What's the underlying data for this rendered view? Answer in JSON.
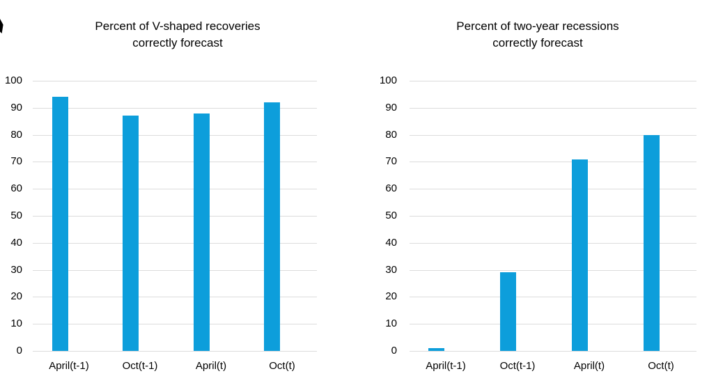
{
  "figure": {
    "background": "#ffffff",
    "text_color": "#000000",
    "gridline_color": "#dcdcdc",
    "bar_color": "#0d9edb",
    "edge_mark_color": "#000000"
  },
  "chart_data": [
    {
      "type": "bar",
      "title": "Percent of V-shaped recoveries correctly forecast",
      "title_lines": [
        "Percent of V-shaped recoveries",
        "correctly forecast"
      ],
      "categories": [
        "April(t-1)",
        "Oct(t-1)",
        "April(t)",
        "Oct(t)"
      ],
      "values": [
        94,
        87,
        88,
        92
      ],
      "xlabel": "",
      "ylabel": "",
      "ylim": [
        0,
        100
      ],
      "yticks": [
        0,
        10,
        20,
        30,
        40,
        50,
        60,
        70,
        80,
        90,
        100
      ],
      "grid": true,
      "legend": false,
      "bar_color": "#0d9edb"
    },
    {
      "type": "bar",
      "title": "Percent of two-year recessions correctly forecast",
      "title_lines": [
        "Percent of two-year recessions",
        "correctly forecast"
      ],
      "categories": [
        "April(t-1)",
        "Oct(t-1)",
        "April(t)",
        "Oct(t)"
      ],
      "values": [
        1,
        29,
        71,
        80
      ],
      "xlabel": "",
      "ylabel": "",
      "ylim": [
        0,
        100
      ],
      "yticks": [
        0,
        10,
        20,
        30,
        40,
        50,
        60,
        70,
        80,
        90,
        100
      ],
      "grid": true,
      "legend": false,
      "bar_color": "#0d9edb"
    }
  ]
}
